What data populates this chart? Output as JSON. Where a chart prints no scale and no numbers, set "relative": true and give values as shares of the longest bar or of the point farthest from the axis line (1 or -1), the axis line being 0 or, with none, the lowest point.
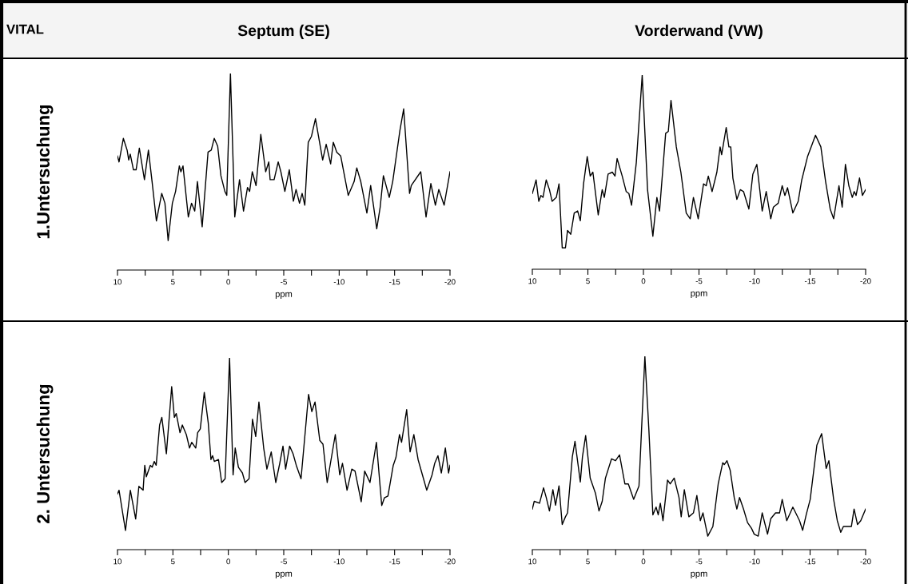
{
  "chart_data": [
    {
      "type": "line",
      "title": "Septum (SE)",
      "ylabel": "1.Untersuchung",
      "xlabel": "ppm",
      "annotations": [
        "VITAL"
      ],
      "relative": true,
      "tick_labels": "x",
      "xlim": [
        10,
        -20
      ],
      "xticks": [
        10,
        {
          "value": 7.5,
          "label": null
        },
        5,
        {
          "value": 2.5,
          "label": null
        },
        0,
        {
          "value": -2.5,
          "label": null
        },
        -5,
        {
          "value": -7.5,
          "label": null
        },
        -10,
        {
          "value": -12.5,
          "label": null
        },
        -15,
        {
          "value": -17.5,
          "label": null
        },
        -20
      ],
      "x": [
        10,
        9.86,
        9.47,
        9.13,
        8.99,
        8.85,
        8.56,
        8.32,
        8.03,
        7.57,
        7.21,
        6.88,
        6.49,
        6.01,
        5.72,
        5.43,
        5.05,
        4.76,
        4.42,
        4.28,
        4.09,
        3.61,
        3.32,
        3.03,
        2.79,
        2.36,
        1.83,
        1.54,
        1.27,
        0.96,
        0.67,
        0.31,
        0.14,
        -0.19,
        -0.58,
        -1.01,
        -1.37,
        -1.73,
        -1.92,
        -2.16,
        -2.5,
        -2.93,
        -3.37,
        -3.65,
        -3.77,
        -4.13,
        -4.5,
        -4.74,
        -5.1,
        -5.5,
        -5.87,
        -6.11,
        -6.42,
        -6.66,
        -6.9,
        -7.21,
        -7.5,
        -7.86,
        -8.51,
        -8.83,
        -9.23,
        -9.47,
        -9.78,
        -10.14,
        -10.82,
        -11.35,
        -11.59,
        -11.95,
        -12.5,
        -12.84,
        -13.39,
        -13.7,
        -13.99,
        -14.52,
        -14.83,
        -15.48,
        -15.82,
        -16.35,
        -16.51,
        -17.36,
        -17.84,
        -18.27,
        -18.68,
        -18.99,
        -19.47,
        -20
      ],
      "series": [
        {
          "color": "#000000",
          "values": [
            0.58,
            0.55,
            0.67,
            0.61,
            0.56,
            0.59,
            0.51,
            0.51,
            0.62,
            0.46,
            0.61,
            0.45,
            0.25,
            0.39,
            0.34,
            0.15,
            0.34,
            0.4,
            0.53,
            0.5,
            0.53,
            0.27,
            0.34,
            0.3,
            0.45,
            0.22,
            0.6,
            0.61,
            0.67,
            0.63,
            0.48,
            0.4,
            0.38,
            1.0,
            0.27,
            0.46,
            0.3,
            0.42,
            0.4,
            0.5,
            0.43,
            0.69,
            0.5,
            0.55,
            0.46,
            0.46,
            0.55,
            0.5,
            0.4,
            0.51,
            0.35,
            0.41,
            0.34,
            0.39,
            0.33,
            0.65,
            0.68,
            0.77,
            0.56,
            0.64,
            0.54,
            0.65,
            0.6,
            0.58,
            0.38,
            0.45,
            0.52,
            0.45,
            0.29,
            0.43,
            0.21,
            0.32,
            0.48,
            0.37,
            0.45,
            0.71,
            0.82,
            0.39,
            0.43,
            0.5,
            0.27,
            0.44,
            0.33,
            0.41,
            0.33,
            0.5
          ]
        }
      ]
    },
    {
      "type": "line",
      "title": "Vorderwand (VW)",
      "xlabel": "ppm",
      "relative": true,
      "tick_labels": "x",
      "xlim": [
        10,
        -20
      ],
      "xticks": [
        10,
        {
          "value": 7.5,
          "label": null
        },
        5,
        {
          "value": 2.5,
          "label": null
        },
        0,
        {
          "value": -2.5,
          "label": null
        },
        -5,
        {
          "value": -7.5,
          "label": null
        },
        -10,
        {
          "value": -12.5,
          "label": null
        },
        -15,
        {
          "value": -17.5,
          "label": null
        },
        -20
      ],
      "x": [
        10,
        9.66,
        9.42,
        9.23,
        9.04,
        8.75,
        8.46,
        8.22,
        7.84,
        7.6,
        7.31,
        7.02,
        6.83,
        6.54,
        6.23,
        5.92,
        5.68,
        5.39,
        5.06,
        4.79,
        4.55,
        4.07,
        3.71,
        3.52,
        3.18,
        2.8,
        2.56,
        2.37,
        1.91,
        1.55,
        1.31,
        1.07,
        0.64,
        0.11,
        -0.37,
        -0.85,
        -1.21,
        -1.45,
        -2.0,
        -2.24,
        -2.48,
        -2.96,
        -3.37,
        -3.85,
        -4.21,
        -4.5,
        -4.93,
        -5.41,
        -5.65,
        -5.84,
        -6.18,
        -6.61,
        -6.9,
        -7.04,
        -7.45,
        -7.69,
        -7.86,
        -8.05,
        -8.41,
        -8.72,
        -9.01,
        -9.49,
        -9.85,
        -10.21,
        -10.69,
        -11.05,
        -11.46,
        -11.7,
        -12.13,
        -12.49,
        -12.73,
        -12.97,
        -13.45,
        -13.93,
        -14.25,
        -14.77,
        -15.49,
        -15.97,
        -16.4,
        -16.81,
        -17.12,
        -17.6,
        -17.89,
        -18.18,
        -18.49,
        -18.8,
        -18.97,
        -19.14,
        -19.45,
        -19.71,
        -20
      ],
      "series": [
        {
          "color": "#000000",
          "values": [
            0.39,
            0.46,
            0.35,
            0.38,
            0.37,
            0.46,
            0.41,
            0.35,
            0.37,
            0.44,
            0.11,
            0.11,
            0.2,
            0.18,
            0.29,
            0.3,
            0.25,
            0.44,
            0.58,
            0.48,
            0.5,
            0.28,
            0.41,
            0.37,
            0.49,
            0.5,
            0.48,
            0.57,
            0.48,
            0.4,
            0.39,
            0.33,
            0.55,
            1.0,
            0.41,
            0.17,
            0.37,
            0.3,
            0.7,
            0.71,
            0.87,
            0.63,
            0.5,
            0.29,
            0.26,
            0.37,
            0.26,
            0.44,
            0.43,
            0.48,
            0.4,
            0.5,
            0.63,
            0.59,
            0.73,
            0.63,
            0.63,
            0.47,
            0.36,
            0.41,
            0.4,
            0.31,
            0.49,
            0.54,
            0.3,
            0.4,
            0.26,
            0.32,
            0.34,
            0.43,
            0.38,
            0.42,
            0.29,
            0.35,
            0.46,
            0.58,
            0.69,
            0.63,
            0.45,
            0.31,
            0.26,
            0.43,
            0.32,
            0.54,
            0.43,
            0.37,
            0.4,
            0.38,
            0.47,
            0.38,
            0.41
          ]
        }
      ]
    },
    {
      "type": "line",
      "ylabel": "2. Untersuchung",
      "xlabel": "ppm",
      "relative": true,
      "tick_labels": "x",
      "xlim": [
        10,
        -20
      ],
      "xticks": [
        10,
        {
          "value": 7.5,
          "label": null
        },
        5,
        {
          "value": 2.5,
          "label": null
        },
        0,
        {
          "value": -2.5,
          "label": null
        },
        -5,
        {
          "value": -7.5,
          "label": null
        },
        -10,
        {
          "value": -12.5,
          "label": null
        },
        -15,
        {
          "value": -17.5,
          "label": null
        },
        -20
      ],
      "x": [
        10,
        9.86,
        9.28,
        8.84,
        8.36,
        8.07,
        7.69,
        7.54,
        7.4,
        7.04,
        6.87,
        6.68,
        6.51,
        6.2,
        6.0,
        5.59,
        5.11,
        4.87,
        4.7,
        4.36,
        4.15,
        3.79,
        3.5,
        3.3,
        2.94,
        2.77,
        2.53,
        2.17,
        1.81,
        1.57,
        1.42,
        1.26,
        0.89,
        0.6,
        0.29,
        -0.11,
        -0.43,
        -0.62,
        -0.91,
        -1.27,
        -1.51,
        -1.87,
        -2.18,
        -2.47,
        -2.76,
        -3.19,
        -3.48,
        -3.87,
        -4.28,
        -4.64,
        -4.93,
        -5.17,
        -5.53,
        -5.84,
        -6.13,
        -6.56,
        -7.24,
        -7.53,
        -7.82,
        -8.25,
        -8.54,
        -8.92,
        -9.65,
        -10.05,
        -10.3,
        -10.71,
        -11.14,
        -11.43,
        -11.99,
        -12.3,
        -12.78,
        -13.36,
        -13.84,
        -14.08,
        -14.4,
        -14.88,
        -15.12,
        -15.44,
        -15.63,
        -16.09,
        -16.4,
        -16.74,
        -17.12,
        -17.61,
        -17.9,
        -18.38,
        -18.62,
        -18.91,
        -19.22,
        -19.58,
        -19.87,
        -20
      ],
      "series": [
        {
          "color": "#000000",
          "values": [
            0.29,
            0.31,
            0.1,
            0.31,
            0.16,
            0.33,
            0.31,
            0.44,
            0.38,
            0.44,
            0.43,
            0.46,
            0.44,
            0.65,
            0.69,
            0.5,
            0.85,
            0.69,
            0.71,
            0.61,
            0.65,
            0.6,
            0.53,
            0.56,
            0.53,
            0.61,
            0.63,
            0.82,
            0.66,
            0.47,
            0.49,
            0.46,
            0.47,
            0.35,
            0.37,
            1.0,
            0.39,
            0.53,
            0.43,
            0.4,
            0.35,
            0.37,
            0.68,
            0.59,
            0.77,
            0.53,
            0.42,
            0.51,
            0.35,
            0.45,
            0.54,
            0.42,
            0.54,
            0.5,
            0.44,
            0.37,
            0.81,
            0.72,
            0.77,
            0.57,
            0.55,
            0.35,
            0.6,
            0.39,
            0.45,
            0.31,
            0.42,
            0.41,
            0.25,
            0.41,
            0.35,
            0.56,
            0.23,
            0.27,
            0.28,
            0.44,
            0.48,
            0.6,
            0.56,
            0.73,
            0.51,
            0.6,
            0.47,
            0.37,
            0.31,
            0.39,
            0.45,
            0.49,
            0.4,
            0.53,
            0.4,
            0.44
          ]
        }
      ]
    },
    {
      "type": "line",
      "xlabel": "ppm",
      "relative": true,
      "tick_labels": "x",
      "xlim": [
        10,
        -20
      ],
      "xticks": [
        10,
        {
          "value": 7.5,
          "label": null
        },
        5,
        {
          "value": 2.5,
          "label": null
        },
        0,
        {
          "value": -2.5,
          "label": null
        },
        -5,
        {
          "value": -7.5,
          "label": null
        },
        -10,
        {
          "value": -12.5,
          "label": null
        },
        -15,
        {
          "value": -17.5,
          "label": null
        },
        -20
      ],
      "x": [
        10,
        9.83,
        9.35,
        8.99,
        8.75,
        8.46,
        8.15,
        7.91,
        7.6,
        7.31,
        7.02,
        6.83,
        6.4,
        6.16,
        5.68,
        5.49,
        5.2,
        4.79,
        4.31,
        4.0,
        3.71,
        3.42,
        2.87,
        2.51,
        2.15,
        1.67,
        1.36,
        0.88,
        0.4,
        -0.13,
        -0.49,
        -0.85,
        -1.14,
        -1.33,
        -1.52,
        -1.76,
        -2.17,
        -2.41,
        -2.77,
        -3.2,
        -3.4,
        -3.68,
        -4.09,
        -4.5,
        -4.81,
        -5.12,
        -5.36,
        -5.79,
        -6.25,
        -6.73,
        -7.14,
        -7.28,
        -7.52,
        -7.81,
        -8.17,
        -8.41,
        -8.65,
        -9.01,
        -9.37,
        -9.73,
        -9.97,
        -10.33,
        -10.69,
        -11.17,
        -11.46,
        -11.89,
        -12.25,
        -12.49,
        -12.9,
        -13.45,
        -14.05,
        -14.33,
        -14.65,
        -15.01,
        -15.61,
        -16.04,
        -16.45,
        -16.69,
        -17.12,
        -17.45,
        -17.76,
        -18.0,
        -18.72,
        -18.96,
        -19.27,
        -19.56,
        -20
      ],
      "series": [
        {
          "color": "#000000",
          "values": [
            0.21,
            0.25,
            0.24,
            0.32,
            0.27,
            0.2,
            0.31,
            0.23,
            0.33,
            0.13,
            0.17,
            0.19,
            0.48,
            0.56,
            0.35,
            0.48,
            0.59,
            0.37,
            0.29,
            0.2,
            0.25,
            0.37,
            0.47,
            0.46,
            0.49,
            0.34,
            0.34,
            0.26,
            0.33,
            1.0,
            0.62,
            0.18,
            0.22,
            0.18,
            0.24,
            0.15,
            0.36,
            0.34,
            0.37,
            0.27,
            0.17,
            0.31,
            0.17,
            0.19,
            0.28,
            0.15,
            0.19,
            0.07,
            0.12,
            0.34,
            0.45,
            0.44,
            0.46,
            0.41,
            0.27,
            0.21,
            0.27,
            0.21,
            0.14,
            0.11,
            0.08,
            0.07,
            0.19,
            0.08,
            0.16,
            0.19,
            0.19,
            0.26,
            0.15,
            0.22,
            0.15,
            0.1,
            0.18,
            0.26,
            0.54,
            0.6,
            0.42,
            0.46,
            0.26,
            0.15,
            0.09,
            0.12,
            0.12,
            0.21,
            0.13,
            0.15,
            0.21
          ]
        }
      ]
    }
  ]
}
